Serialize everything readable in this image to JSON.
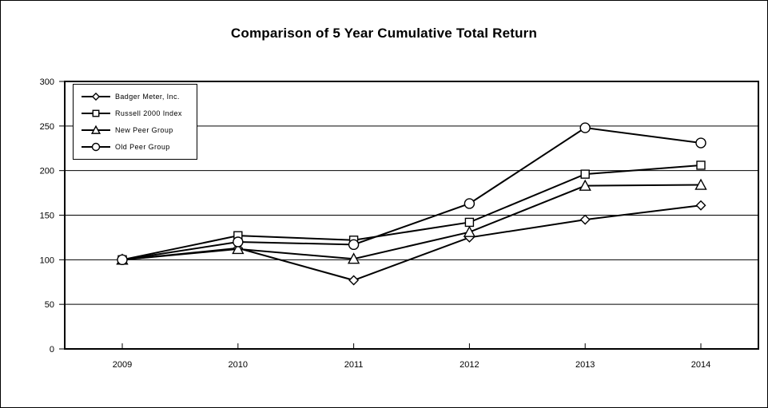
{
  "title": "Comparison of 5 Year Cumulative Total Return",
  "chart_data": {
    "type": "line",
    "title": "Comparison of 5 Year Cumulative Total Return",
    "categories": [
      "2009",
      "2010",
      "2011",
      "2012",
      "2013",
      "2014"
    ],
    "series": [
      {
        "name": "Badger Meter, Inc.",
        "marker": "diamond",
        "color": "#000000",
        "values": [
          100,
          113,
          77,
          125,
          145,
          161
        ]
      },
      {
        "name": "Russell 2000 Index",
        "marker": "square",
        "color": "#000000",
        "values": [
          100,
          127,
          122,
          142,
          196,
          206
        ]
      },
      {
        "name": "New Peer Group",
        "marker": "triangle",
        "color": "#000000",
        "values": [
          100,
          112,
          101,
          131,
          183,
          184
        ]
      },
      {
        "name": "Old Peer Group",
        "marker": "circle",
        "color": "#000000",
        "values": [
          100,
          120,
          117,
          163,
          248,
          231
        ]
      }
    ],
    "xlabel": "",
    "ylabel": "",
    "ylim": [
      0,
      300
    ],
    "y_ticks": [
      0,
      50,
      100,
      150,
      200,
      250,
      300
    ],
    "grid": true,
    "legend_position": "top-left-inside",
    "axis_color": "#000000",
    "marker_fill": "#ffffff",
    "background_color": "#ffffff"
  }
}
